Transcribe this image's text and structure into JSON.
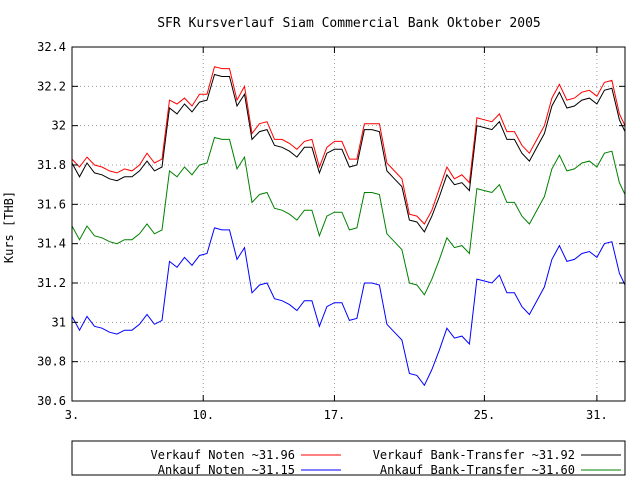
{
  "chart_data": {
    "type": "line",
    "title": "SFR Kursverlauf Siam Commercial Bank Oktober 2005",
    "xlabel": "",
    "ylabel": "Kurs [THB]",
    "xlim": [
      3,
      32.5
    ],
    "ylim": [
      30.6,
      32.4
    ],
    "x_ticks": [
      {
        "value": 3,
        "label": "3."
      },
      {
        "value": 10,
        "label": "10."
      },
      {
        "value": 17,
        "label": "17."
      },
      {
        "value": 25,
        "label": "25."
      },
      {
        "value": 31,
        "label": "31."
      }
    ],
    "y_ticks": [
      {
        "value": 30.6,
        "label": "30.6"
      },
      {
        "value": 30.8,
        "label": "30.8"
      },
      {
        "value": 31.0,
        "label": "31"
      },
      {
        "value": 31.2,
        "label": "31.2"
      },
      {
        "value": 31.4,
        "label": "31.4"
      },
      {
        "value": 31.6,
        "label": "31.6"
      },
      {
        "value": 31.8,
        "label": "31.8"
      },
      {
        "value": 32.0,
        "label": "32"
      },
      {
        "value": 32.2,
        "label": "32.2"
      },
      {
        "value": 32.4,
        "label": "32.4"
      }
    ],
    "grid": true,
    "legend_position": "bottom",
    "x": [
      3.0,
      3.4,
      3.8,
      4.2,
      4.6,
      5.0,
      5.4,
      5.8,
      6.2,
      6.6,
      7.0,
      7.4,
      7.8,
      8.2,
      8.6,
      9.0,
      9.4,
      9.8,
      10.2,
      10.6,
      11.0,
      11.4,
      11.8,
      12.2,
      12.6,
      13.0,
      13.4,
      13.8,
      14.2,
      14.6,
      15.0,
      15.4,
      15.8,
      16.2,
      16.6,
      17.0,
      17.4,
      17.8,
      18.2,
      18.6,
      19.0,
      19.4,
      19.8,
      20.2,
      20.6,
      21.0,
      21.4,
      21.8,
      22.2,
      22.6,
      23.0,
      23.4,
      23.8,
      24.2,
      24.6,
      25.0,
      25.4,
      25.8,
      26.2,
      26.6,
      27.0,
      27.4,
      27.8,
      28.2,
      28.6,
      29.0,
      29.4,
      29.8,
      30.2,
      30.6,
      31.0,
      31.4,
      31.8,
      32.2,
      32.5
    ],
    "series": [
      {
        "name": "Verkauf Noten ~31.96",
        "color": "#ff0000",
        "values": [
          31.83,
          31.79,
          31.84,
          31.8,
          31.79,
          31.77,
          31.76,
          31.78,
          31.77,
          31.8,
          31.86,
          31.81,
          31.83,
          32.13,
          32.11,
          32.14,
          32.1,
          32.16,
          32.16,
          32.3,
          32.29,
          32.29,
          32.13,
          32.2,
          31.96,
          32.01,
          32.02,
          31.93,
          31.93,
          31.91,
          31.88,
          31.92,
          31.93,
          31.79,
          31.89,
          31.92,
          31.92,
          31.83,
          31.83,
          32.01,
          32.01,
          32.01,
          31.81,
          31.77,
          31.73,
          31.55,
          31.54,
          31.5,
          31.57,
          31.68,
          31.79,
          31.73,
          31.75,
          31.71,
          32.04,
          32.03,
          32.02,
          32.06,
          31.97,
          31.97,
          31.9,
          31.86,
          31.93,
          32.0,
          32.14,
          32.21,
          32.13,
          32.14,
          32.17,
          32.18,
          32.15,
          32.22,
          32.23,
          32.06,
          32.0
        ]
      },
      {
        "name": "Verkauf Bank-Transfer ~31.92",
        "color": "#000000",
        "values": [
          31.81,
          31.74,
          31.81,
          31.76,
          31.75,
          31.73,
          31.72,
          31.74,
          31.74,
          31.77,
          31.82,
          31.77,
          31.79,
          32.09,
          32.06,
          32.11,
          32.07,
          32.12,
          32.13,
          32.26,
          32.25,
          32.25,
          32.1,
          32.16,
          31.93,
          31.97,
          31.98,
          31.9,
          31.89,
          31.87,
          31.84,
          31.89,
          31.89,
          31.76,
          31.86,
          31.88,
          31.88,
          31.79,
          31.8,
          31.98,
          31.98,
          31.97,
          31.77,
          31.73,
          31.69,
          31.52,
          31.51,
          31.46,
          31.54,
          31.64,
          31.75,
          31.7,
          31.71,
          31.67,
          32.0,
          31.99,
          31.98,
          32.02,
          31.93,
          31.93,
          31.86,
          31.82,
          31.89,
          31.96,
          32.1,
          32.17,
          32.09,
          32.1,
          32.13,
          32.14,
          32.11,
          32.18,
          32.19,
          32.03,
          31.97
        ]
      },
      {
        "name": "Ankauf Noten ~31.15",
        "color": "#0000ff",
        "values": [
          31.03,
          30.96,
          31.03,
          30.98,
          30.97,
          30.95,
          30.94,
          30.96,
          30.96,
          30.99,
          31.04,
          30.99,
          31.01,
          31.31,
          31.28,
          31.33,
          31.29,
          31.34,
          31.35,
          31.48,
          31.47,
          31.47,
          31.32,
          31.38,
          31.15,
          31.19,
          31.2,
          31.12,
          31.11,
          31.09,
          31.06,
          31.11,
          31.11,
          30.98,
          31.08,
          31.1,
          31.1,
          31.01,
          31.02,
          31.2,
          31.2,
          31.19,
          30.99,
          30.95,
          30.91,
          30.74,
          30.73,
          30.68,
          30.76,
          30.86,
          30.97,
          30.92,
          30.93,
          30.89,
          31.22,
          31.21,
          31.2,
          31.24,
          31.15,
          31.15,
          31.08,
          31.04,
          31.11,
          31.18,
          31.32,
          31.39,
          31.31,
          31.32,
          31.35,
          31.36,
          31.33,
          31.4,
          31.41,
          31.25,
          31.19
        ]
      },
      {
        "name": "Ankauf Bank-Transfer ~31.60",
        "color": "#008000",
        "values": [
          31.49,
          31.42,
          31.49,
          31.44,
          31.43,
          31.41,
          31.4,
          31.42,
          31.42,
          31.45,
          31.5,
          31.45,
          31.47,
          31.77,
          31.74,
          31.79,
          31.75,
          31.8,
          31.81,
          31.94,
          31.93,
          31.93,
          31.78,
          31.84,
          31.61,
          31.65,
          31.66,
          31.58,
          31.57,
          31.55,
          31.52,
          31.57,
          31.57,
          31.44,
          31.54,
          31.56,
          31.56,
          31.47,
          31.48,
          31.66,
          31.66,
          31.65,
          31.45,
          31.41,
          31.37,
          31.2,
          31.19,
          31.14,
          31.22,
          31.32,
          31.43,
          31.38,
          31.39,
          31.35,
          31.68,
          31.67,
          31.66,
          31.7,
          31.61,
          31.61,
          31.54,
          31.5,
          31.57,
          31.64,
          31.78,
          31.85,
          31.77,
          31.78,
          31.81,
          31.82,
          31.79,
          31.86,
          31.87,
          31.71,
          31.65
        ]
      }
    ],
    "legend_order": [
      0,
      1,
      2,
      3
    ]
  }
}
